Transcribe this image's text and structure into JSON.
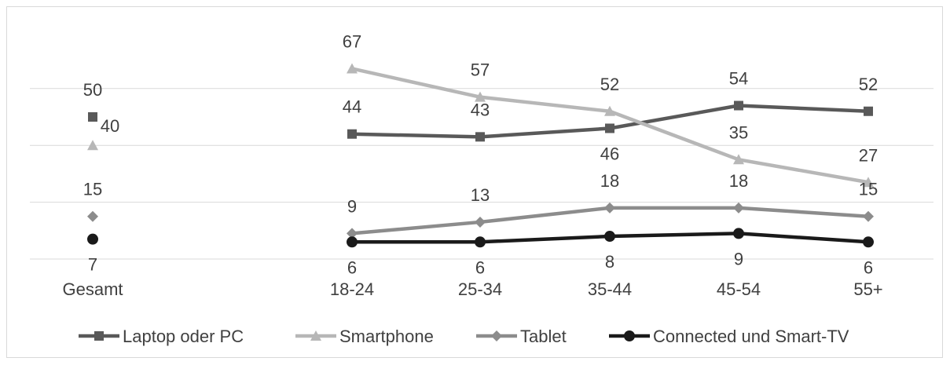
{
  "chart_data": {
    "type": "line",
    "categories": [
      "Gesamt",
      "18-24",
      "25-34",
      "35-44",
      "45-54",
      "55+"
    ],
    "ylim": [
      0,
      60
    ],
    "grid": true,
    "legend_position": "bottom",
    "series": [
      {
        "name": "Laptop oder PC",
        "color": "#595959",
        "marker": "square",
        "values": [
          50,
          44,
          43,
          46,
          54,
          52
        ],
        "labels": [
          "50",
          "44",
          "43",
          "46",
          "54",
          "52"
        ]
      },
      {
        "name": "Smartphone",
        "color": "#b7b7b7",
        "marker": "triangle",
        "values": [
          40,
          67,
          57,
          52,
          35,
          27
        ],
        "labels": [
          "40",
          "67",
          "57",
          "52",
          "35",
          "27"
        ]
      },
      {
        "name": "Tablet",
        "color": "#8c8c8c",
        "marker": "diamond",
        "values": [
          15,
          9,
          13,
          18,
          18,
          15
        ],
        "labels": [
          "15",
          "9",
          "13",
          "18",
          "18",
          "15"
        ]
      },
      {
        "name": "Connected und Smart-TV",
        "color": "#1a1a1a",
        "marker": "circle",
        "values": [
          7,
          6,
          6,
          8,
          9,
          6
        ],
        "labels": [
          "7",
          "6",
          "6",
          "8",
          "9",
          "6"
        ]
      }
    ]
  }
}
